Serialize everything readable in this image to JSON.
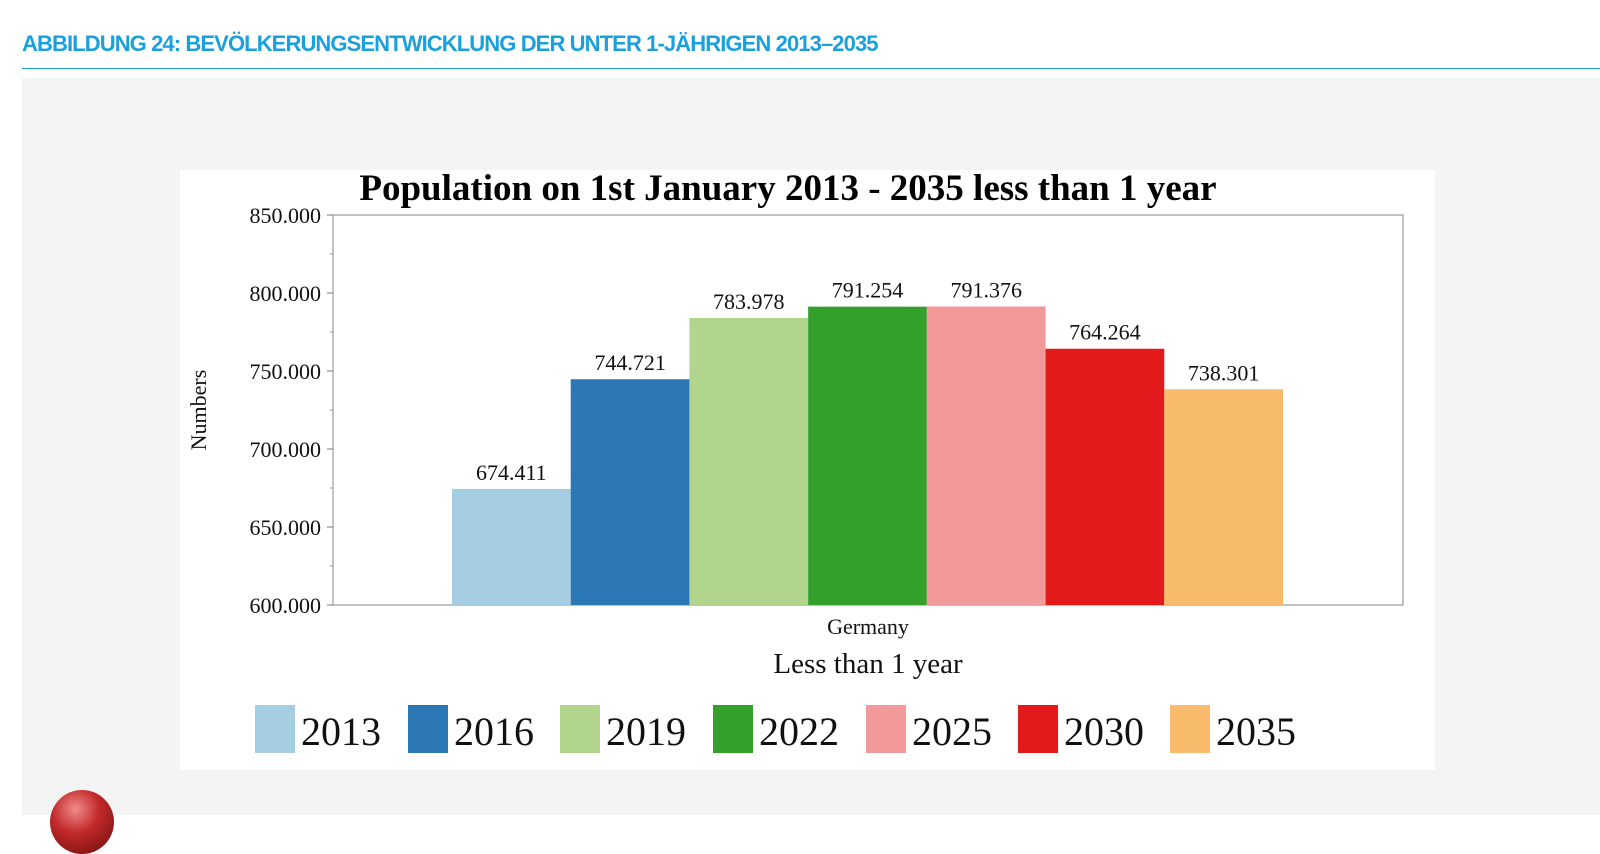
{
  "page": {
    "heading": "ABBILDUNG 24: BEVÖLKERUNGSENTWICKLUNG DER UNTER 1-JÄHRIGEN 2013–2035",
    "accent_color": "#1aa0dc",
    "marker_icon": "red-sphere-icon"
  },
  "chart_data": {
    "type": "bar",
    "title": "Population on 1st January  2013 - 2035 less than  1 year",
    "xlabel": "Less than 1 year",
    "ylabel": "Numbers",
    "categories": [
      "Germany"
    ],
    "series": [
      {
        "name": "2013",
        "values": [
          674411
        ],
        "value_label": "674.411",
        "color": "#a6cee3"
      },
      {
        "name": "2016",
        "values": [
          744721
        ],
        "value_label": "744.721",
        "color": "#2b78b5"
      },
      {
        "name": "2019",
        "values": [
          783978
        ],
        "value_label": "783.978",
        "color": "#b2d58e"
      },
      {
        "name": "2022",
        "values": [
          791254
        ],
        "value_label": "791.254",
        "color": "#33a02c"
      },
      {
        "name": "2025",
        "values": [
          791376
        ],
        "value_label": "791.376",
        "color": "#f29a9a"
      },
      {
        "name": "2030",
        "values": [
          764264
        ],
        "value_label": "764.264",
        "color": "#e31a1c"
      },
      {
        "name": "2035",
        "values": [
          738301
        ],
        "value_label": "738.301",
        "color": "#f7bb6b"
      }
    ],
    "ylim": [
      600000,
      850000
    ],
    "yticks": [
      600000,
      650000,
      700000,
      750000,
      800000,
      850000
    ],
    "ytick_labels": [
      "600.000",
      "650.000",
      "700.000",
      "750.000",
      "800.000",
      "850.000"
    ],
    "grid": false,
    "legend_position": "bottom"
  }
}
